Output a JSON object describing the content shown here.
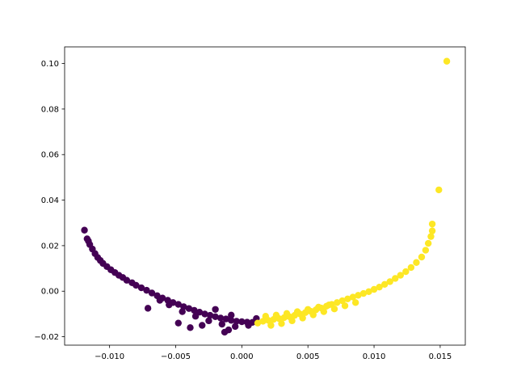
{
  "chart_data": {
    "type": "scatter",
    "title": "",
    "xlabel": "",
    "ylabel": "",
    "xlim": [
      -0.0134,
      0.0169
    ],
    "ylim": [
      -0.0237,
      0.1073
    ],
    "grid": false,
    "legend": "none",
    "x_ticks": [
      "−0.010",
      "−0.005",
      "0.000",
      "0.005",
      "0.010",
      "0.015"
    ],
    "x_tick_values": [
      -0.01,
      -0.005,
      0.0,
      0.005,
      0.01,
      0.015
    ],
    "y_ticks": [
      "−0.02",
      "0.00",
      "0.02",
      "0.04",
      "0.06",
      "0.08",
      "0.10"
    ],
    "y_tick_values": [
      -0.02,
      0.0,
      0.02,
      0.04,
      0.06,
      0.08,
      0.1
    ],
    "series": [
      {
        "color": "#440154",
        "points": [
          [
            -0.0119,
            0.0268
          ],
          [
            -0.0117,
            0.023
          ],
          [
            -0.0116,
            0.022
          ],
          [
            -0.0115,
            0.0205
          ],
          [
            -0.0113,
            0.0185
          ],
          [
            -0.0111,
            0.0165
          ],
          [
            -0.0109,
            0.0148
          ],
          [
            -0.0107,
            0.0135
          ],
          [
            -0.0105,
            0.0122
          ],
          [
            -0.0102,
            0.0108
          ],
          [
            -0.0099,
            0.0094
          ],
          [
            -0.0096,
            0.0082
          ],
          [
            -0.0093,
            0.007
          ],
          [
            -0.009,
            0.006
          ],
          [
            -0.0087,
            0.0048
          ],
          [
            -0.0083,
            0.0037
          ],
          [
            -0.008,
            0.0026
          ],
          [
            -0.0076,
            0.0015
          ],
          [
            -0.0072,
            0.0004
          ],
          [
            -0.0068,
            -0.0008
          ],
          [
            -0.0064,
            -0.002
          ],
          [
            -0.006,
            -0.003
          ],
          [
            -0.0056,
            -0.004
          ],
          [
            -0.0052,
            -0.005
          ],
          [
            -0.0048,
            -0.0058
          ],
          [
            -0.0044,
            -0.0068
          ],
          [
            -0.004,
            -0.0076
          ],
          [
            -0.0036,
            -0.0084
          ],
          [
            -0.0032,
            -0.0092
          ],
          [
            -0.0028,
            -0.01
          ],
          [
            -0.0024,
            -0.0106
          ],
          [
            -0.002,
            -0.0112
          ],
          [
            -0.0016,
            -0.0118
          ],
          [
            -0.0012,
            -0.0122
          ],
          [
            -0.0008,
            -0.0128
          ],
          [
            -0.0004,
            -0.0132
          ],
          [
            0.0,
            -0.0134
          ],
          [
            0.0004,
            -0.0136
          ],
          [
            0.0008,
            -0.0137
          ],
          [
            0.0011,
            -0.012
          ],
          [
            -0.0071,
            -0.0075
          ],
          [
            -0.0048,
            -0.014
          ],
          [
            -0.0039,
            -0.016
          ],
          [
            -0.003,
            -0.015
          ],
          [
            -0.0013,
            -0.018
          ],
          [
            -0.001,
            -0.017
          ],
          [
            -0.0062,
            -0.004
          ],
          [
            -0.0055,
            -0.006
          ],
          [
            -0.0045,
            -0.009
          ],
          [
            -0.0035,
            -0.011
          ],
          [
            -0.0025,
            -0.013
          ],
          [
            -0.0015,
            -0.0145
          ],
          [
            -0.0005,
            -0.0155
          ],
          [
            0.0005,
            -0.015
          ],
          [
            -0.002,
            -0.008
          ],
          [
            -0.0008,
            -0.0105
          ]
        ]
      },
      {
        "color": "#fde725",
        "points": [
          [
            0.0012,
            -0.014
          ],
          [
            0.0016,
            -0.0132
          ],
          [
            0.002,
            -0.0128
          ],
          [
            0.0024,
            -0.0124
          ],
          [
            0.0028,
            -0.012
          ],
          [
            0.0032,
            -0.0116
          ],
          [
            0.0036,
            -0.0112
          ],
          [
            0.004,
            -0.0106
          ],
          [
            0.0044,
            -0.01
          ],
          [
            0.0048,
            -0.0094
          ],
          [
            0.0052,
            -0.0088
          ],
          [
            0.0056,
            -0.0082
          ],
          [
            0.006,
            -0.0074
          ],
          [
            0.0064,
            -0.0066
          ],
          [
            0.0068,
            -0.0058
          ],
          [
            0.0072,
            -0.005
          ],
          [
            0.0076,
            -0.0042
          ],
          [
            0.008,
            -0.0034
          ],
          [
            0.0084,
            -0.0026
          ],
          [
            0.0088,
            -0.0018
          ],
          [
            0.0092,
            -0.001
          ],
          [
            0.0096,
            -0.0002
          ],
          [
            0.01,
            0.0008
          ],
          [
            0.0104,
            0.0018
          ],
          [
            0.0108,
            0.003
          ],
          [
            0.0112,
            0.0042
          ],
          [
            0.0116,
            0.0056
          ],
          [
            0.012,
            0.007
          ],
          [
            0.0124,
            0.0086
          ],
          [
            0.0128,
            0.0104
          ],
          [
            0.0132,
            0.0126
          ],
          [
            0.0136,
            0.015
          ],
          [
            0.0139,
            0.018
          ],
          [
            0.0141,
            0.021
          ],
          [
            0.0143,
            0.024
          ],
          [
            0.0144,
            0.0265
          ],
          [
            0.0144,
            0.0295
          ],
          [
            0.0149,
            0.0445
          ],
          [
            0.0155,
            0.101
          ],
          [
            0.0022,
            -0.015
          ],
          [
            0.003,
            -0.0142
          ],
          [
            0.0038,
            -0.013
          ],
          [
            0.0046,
            -0.0118
          ],
          [
            0.0054,
            -0.0104
          ],
          [
            0.0062,
            -0.009
          ],
          [
            0.007,
            -0.0078
          ],
          [
            0.0078,
            -0.0064
          ],
          [
            0.0086,
            -0.005
          ],
          [
            0.0018,
            -0.011
          ],
          [
            0.0026,
            -0.0105
          ],
          [
            0.0034,
            -0.0098
          ],
          [
            0.0042,
            -0.009
          ],
          [
            0.005,
            -0.008
          ],
          [
            0.0058,
            -0.007
          ],
          [
            0.0066,
            -0.006
          ]
        ]
      }
    ]
  }
}
